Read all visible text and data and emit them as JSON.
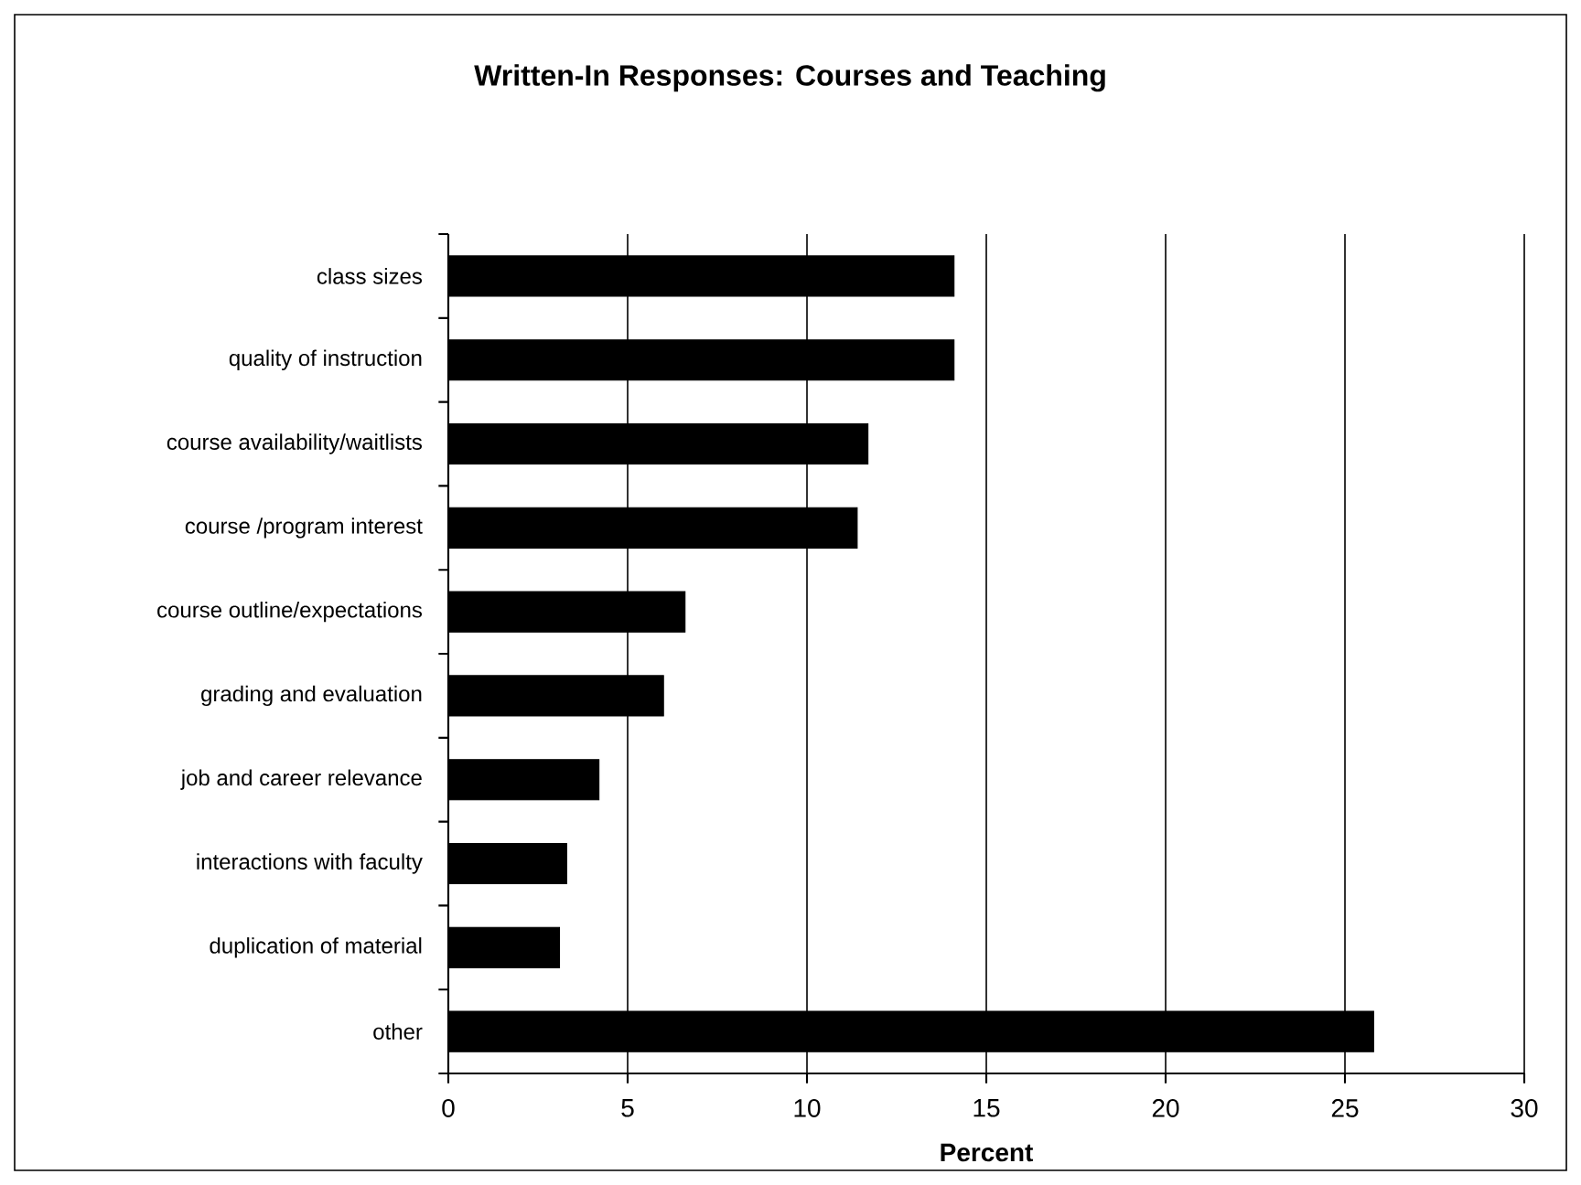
{
  "chart_data": {
    "type": "bar",
    "orientation": "horizontal",
    "title": "Written-In Responses: Courses and Teaching",
    "xlabel": "Percent",
    "categories": [
      "class sizes",
      "quality of instruction",
      "course availability/waitlists",
      "course /program interest",
      "course outline/expectations",
      "grading and evaluation",
      "job and career relevance",
      "interactions with faculty",
      "duplication of material",
      "other"
    ],
    "values": [
      14.1,
      14.1,
      11.7,
      11.4,
      6.6,
      6.0,
      4.2,
      3.3,
      3.1,
      25.8
    ],
    "color": "#000000",
    "xlim": [
      0,
      30
    ],
    "xticks": [
      0,
      5,
      10,
      15,
      20,
      25,
      30
    ],
    "grid": "x"
  }
}
